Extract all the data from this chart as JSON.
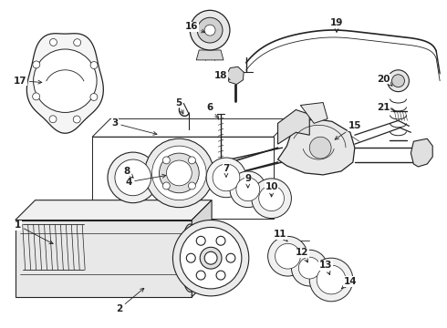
{
  "bg_color": "#ffffff",
  "line_color": "#222222",
  "fig_width": 4.9,
  "fig_height": 3.6,
  "dpi": 100
}
